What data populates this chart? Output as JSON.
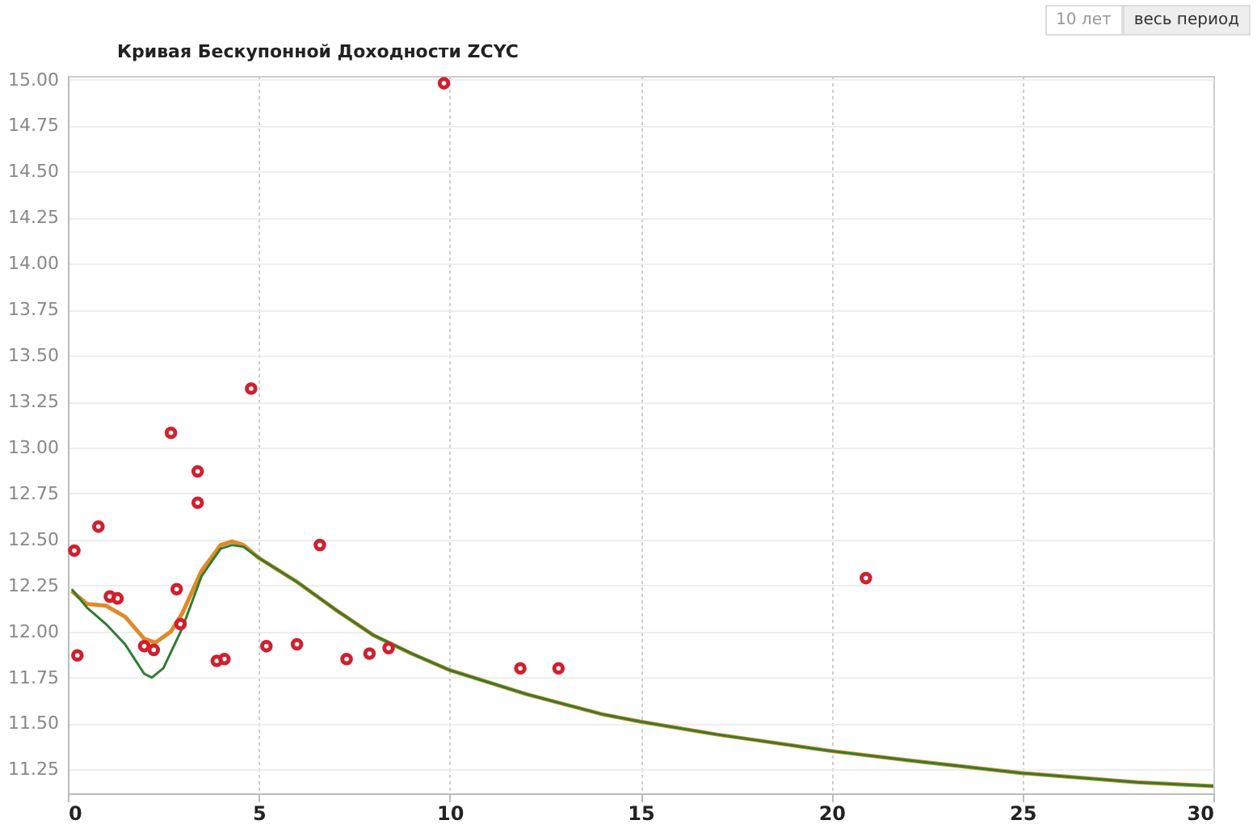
{
  "chart_data": {
    "type": "line",
    "title": "Кривая Бескупонной Доходности  ZCYC",
    "annotations": [
      "10 лет",
      "весь период"
    ],
    "xlim": [
      0,
      30
    ],
    "xticks": [
      0,
      5,
      10,
      15,
      20,
      25,
      30
    ],
    "ylim": [
      11.12,
      15.02
    ],
    "yticks": [
      {
        "value": 11.25,
        "label": "11.25"
      },
      {
        "value": 11.5,
        "label": "11.50"
      },
      {
        "value": 11.75,
        "label": "11.75"
      },
      {
        "value": 12,
        "label": "12.00"
      },
      {
        "value": 12.25,
        "label": "12.25"
      },
      {
        "value": 12.5,
        "label": "12.50"
      },
      {
        "value": 12.75,
        "label": "12.75"
      },
      {
        "value": 13,
        "label": "13.00"
      },
      {
        "value": 13.25,
        "label": "13.25"
      },
      {
        "value": 13.5,
        "label": "13.50"
      },
      {
        "value": 13.75,
        "label": "13.75"
      },
      {
        "value": 14,
        "label": "14.00"
      },
      {
        "value": 14.25,
        "label": "14.25"
      },
      {
        "value": 14.5,
        "label": "14.50"
      },
      {
        "value": 14.75,
        "label": "14.75"
      },
      {
        "value": 15,
        "label": "15.00"
      }
    ],
    "grid": true,
    "series": [
      {
        "color": "#2e7d32",
        "line_style": "solid",
        "x": [
          0.1,
          0.5,
          1,
          1.5,
          2,
          2.2,
          2.5,
          3,
          3.5,
          4,
          4.3,
          4.6,
          5,
          6,
          7,
          8,
          9,
          10,
          12,
          14,
          15,
          17,
          20,
          22,
          25,
          28,
          30
        ],
        "values": [
          12.23,
          12.13,
          12.04,
          11.93,
          11.77,
          11.75,
          11.8,
          12.02,
          12.3,
          12.45,
          12.47,
          12.46,
          12.4,
          12.27,
          12.12,
          11.98,
          11.88,
          11.79,
          11.66,
          11.55,
          11.51,
          11.44,
          11.35,
          11.3,
          11.23,
          11.18,
          11.16
        ]
      },
      {
        "color": "#e0892a",
        "line_style": "solid",
        "x": [
          0.1,
          0.5,
          1,
          1.5,
          2,
          2.3,
          2.7,
          3,
          3.5,
          4,
          4.3,
          4.6,
          5,
          6,
          7,
          8,
          9,
          10,
          12,
          14,
          15,
          17,
          20,
          22,
          25,
          28,
          30
        ],
        "values": [
          12.22,
          12.15,
          12.14,
          12.08,
          11.96,
          11.94,
          12.0,
          12.1,
          12.33,
          12.47,
          12.49,
          12.47,
          12.4,
          12.27,
          12.12,
          11.98,
          11.88,
          11.79,
          11.66,
          11.55,
          11.51,
          11.44,
          11.35,
          11.3,
          11.23,
          11.18,
          11.16
        ]
      },
      {
        "type": "scatter",
        "color": "#d0202f",
        "marker": "circle",
        "x": [
          0.17,
          0.25,
          0.8,
          1.1,
          1.3,
          2.0,
          2.25,
          2.7,
          2.85,
          2.95,
          3.4,
          3.4,
          3.9,
          4.1,
          4.8,
          5.2,
          6.0,
          6.6,
          7.3,
          7.9,
          8.4,
          9.85,
          11.85,
          12.85,
          20.9
        ],
        "values": [
          12.44,
          11.87,
          12.57,
          12.19,
          12.18,
          11.92,
          11.9,
          13.08,
          12.23,
          12.04,
          12.87,
          12.7,
          11.84,
          11.85,
          13.32,
          11.92,
          11.93,
          12.47,
          11.85,
          11.88,
          11.91,
          14.98,
          11.8,
          11.8,
          12.29
        ]
      }
    ]
  }
}
